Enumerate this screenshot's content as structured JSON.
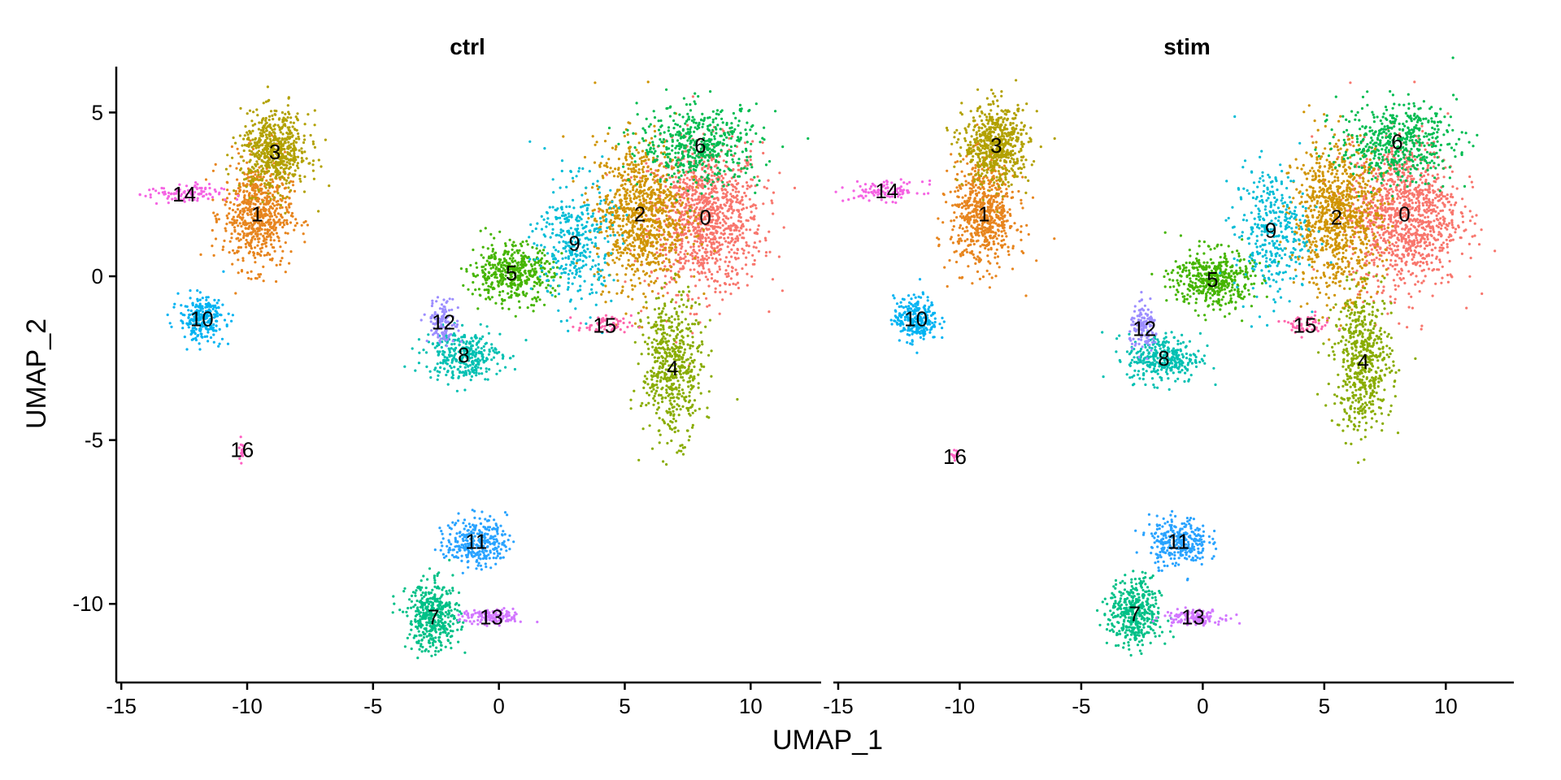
{
  "chart_data": {
    "type": "scatter",
    "title": "",
    "xlabel": "UMAP_1",
    "ylabel": "UMAP_2",
    "xlim": [
      -15.2,
      12.8
    ],
    "ylim": [
      -12.4,
      6.4
    ],
    "x_ticks": [
      -15,
      -10,
      -5,
      0,
      5,
      10
    ],
    "y_ticks": [
      5,
      0,
      -5,
      -10
    ],
    "grid": false,
    "legend": "none",
    "panels": [
      {
        "name": "ctrl",
        "clusters": [
          {
            "label": "0",
            "cx": 8.2,
            "cy": 1.8,
            "sx": 1.5,
            "sy": 1.5,
            "n": 1100,
            "color": "#F8766D"
          },
          {
            "label": "1",
            "cx": -9.6,
            "cy": 1.9,
            "sx": 0.9,
            "sy": 1.1,
            "n": 650,
            "color": "#E7851E"
          },
          {
            "label": "2",
            "cx": 5.6,
            "cy": 1.9,
            "sx": 1.2,
            "sy": 1.5,
            "n": 900,
            "color": "#D09400"
          },
          {
            "label": "3",
            "cx": -8.9,
            "cy": 3.8,
            "sx": 0.9,
            "sy": 0.8,
            "n": 600,
            "color": "#B2A100"
          },
          {
            "label": "4",
            "cx": 6.9,
            "cy": -2.8,
            "sx": 0.8,
            "sy": 1.4,
            "n": 550,
            "color": "#89AC00"
          },
          {
            "label": "5",
            "cx": 0.5,
            "cy": 0.1,
            "sx": 1.1,
            "sy": 0.6,
            "n": 450,
            "color": "#45B500"
          },
          {
            "label": "6",
            "cx": 8.0,
            "cy": 4.0,
            "sx": 1.6,
            "sy": 0.8,
            "n": 500,
            "color": "#00BC51"
          },
          {
            "label": "7",
            "cx": -2.6,
            "cy": -10.4,
            "sx": 0.7,
            "sy": 0.7,
            "n": 420,
            "color": "#00C087"
          },
          {
            "label": "8",
            "cx": -1.4,
            "cy": -2.4,
            "sx": 1.0,
            "sy": 0.5,
            "n": 320,
            "color": "#00C0B2"
          },
          {
            "label": "9",
            "cx": 3.0,
            "cy": 1.0,
            "sx": 1.0,
            "sy": 1.3,
            "n": 350,
            "color": "#00BCD6"
          },
          {
            "label": "10",
            "cx": -11.8,
            "cy": -1.3,
            "sx": 0.6,
            "sy": 0.45,
            "n": 260,
            "color": "#00B3F2"
          },
          {
            "label": "11",
            "cx": -0.9,
            "cy": -8.1,
            "sx": 0.8,
            "sy": 0.5,
            "n": 300,
            "color": "#29A3FF"
          },
          {
            "label": "12",
            "cx": -2.2,
            "cy": -1.4,
            "sx": 0.4,
            "sy": 0.45,
            "n": 130,
            "color": "#9C8DFF"
          },
          {
            "label": "13",
            "cx": -0.3,
            "cy": -10.4,
            "sx": 0.8,
            "sy": 0.15,
            "n": 140,
            "color": "#D277FF"
          },
          {
            "label": "14",
            "cx": -12.5,
            "cy": 2.5,
            "sx": 1.0,
            "sy": 0.2,
            "n": 100,
            "color": "#F564E3"
          },
          {
            "label": "15",
            "cx": 4.2,
            "cy": -1.5,
            "sx": 0.7,
            "sy": 0.2,
            "n": 60,
            "color": "#FF65AC"
          },
          {
            "label": "16",
            "cx": -10.2,
            "cy": -5.3,
            "sx": 0.08,
            "sy": 0.25,
            "n": 18,
            "color": "#FF61C3"
          }
        ]
      },
      {
        "name": "stim",
        "clusters": [
          {
            "label": "0",
            "cx": 8.3,
            "cy": 1.9,
            "sx": 1.5,
            "sy": 1.5,
            "n": 1100,
            "color": "#F8766D"
          },
          {
            "label": "1",
            "cx": -9.0,
            "cy": 1.9,
            "sx": 0.9,
            "sy": 1.1,
            "n": 650,
            "color": "#E7851E"
          },
          {
            "label": "2",
            "cx": 5.5,
            "cy": 1.8,
            "sx": 1.2,
            "sy": 1.5,
            "n": 900,
            "color": "#D09400"
          },
          {
            "label": "3",
            "cx": -8.5,
            "cy": 4.0,
            "sx": 0.9,
            "sy": 0.8,
            "n": 600,
            "color": "#B2A100"
          },
          {
            "label": "4",
            "cx": 6.6,
            "cy": -2.6,
            "sx": 0.8,
            "sy": 1.4,
            "n": 550,
            "color": "#89AC00"
          },
          {
            "label": "5",
            "cx": 0.4,
            "cy": -0.1,
            "sx": 1.1,
            "sy": 0.6,
            "n": 450,
            "color": "#45B500"
          },
          {
            "label": "6",
            "cx": 8.0,
            "cy": 4.1,
            "sx": 1.6,
            "sy": 0.8,
            "n": 500,
            "color": "#00BC51"
          },
          {
            "label": "7",
            "cx": -2.8,
            "cy": -10.3,
            "sx": 0.7,
            "sy": 0.7,
            "n": 420,
            "color": "#00C087"
          },
          {
            "label": "8",
            "cx": -1.6,
            "cy": -2.5,
            "sx": 1.0,
            "sy": 0.5,
            "n": 320,
            "color": "#00C0B2"
          },
          {
            "label": "9",
            "cx": 2.8,
            "cy": 1.4,
            "sx": 1.0,
            "sy": 1.3,
            "n": 350,
            "color": "#00BCD6"
          },
          {
            "label": "10",
            "cx": -11.8,
            "cy": -1.3,
            "sx": 0.6,
            "sy": 0.45,
            "n": 260,
            "color": "#00B3F2"
          },
          {
            "label": "11",
            "cx": -1.0,
            "cy": -8.1,
            "sx": 0.8,
            "sy": 0.5,
            "n": 300,
            "color": "#29A3FF"
          },
          {
            "label": "12",
            "cx": -2.4,
            "cy": -1.6,
            "sx": 0.4,
            "sy": 0.45,
            "n": 130,
            "color": "#9C8DFF"
          },
          {
            "label": "13",
            "cx": -0.4,
            "cy": -10.4,
            "sx": 0.8,
            "sy": 0.15,
            "n": 140,
            "color": "#D277FF"
          },
          {
            "label": "14",
            "cx": -13.0,
            "cy": 2.6,
            "sx": 1.0,
            "sy": 0.2,
            "n": 100,
            "color": "#F564E3"
          },
          {
            "label": "15",
            "cx": 4.2,
            "cy": -1.5,
            "sx": 0.7,
            "sy": 0.2,
            "n": 60,
            "color": "#FF65AC"
          },
          {
            "label": "16",
            "cx": -10.2,
            "cy": -5.5,
            "sx": 0.08,
            "sy": 0.2,
            "n": 15,
            "color": "#FF61C3"
          }
        ]
      }
    ]
  }
}
